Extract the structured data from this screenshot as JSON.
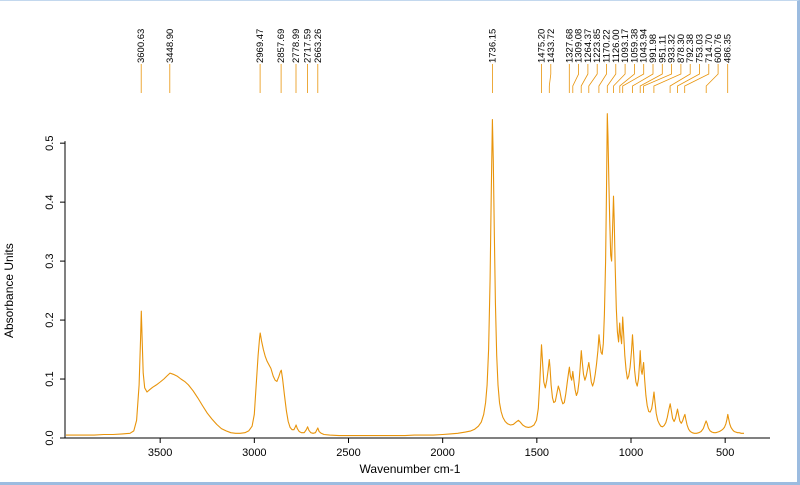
{
  "colors": {
    "line": "#E8940B",
    "leader_line": "#E8940B",
    "axis": "#000000",
    "window_border": "#9CBCE0",
    "background": "#FFFFFF"
  },
  "chart_data": {
    "type": "line",
    "title": "",
    "xlabel": "Wavenumber cm-1",
    "ylabel": "Absorbance Units",
    "legend": "none",
    "grid": false,
    "x_axis": {
      "min": 4000,
      "max": 400,
      "reversed": true,
      "ticks": [
        3500,
        3000,
        2500,
        2000,
        1500,
        1000,
        500
      ]
    },
    "y_axis": {
      "min": 0.0,
      "max": 0.58,
      "ticks": [
        0.0,
        0.1,
        0.2,
        0.3,
        0.4,
        0.5
      ]
    },
    "peak_labels": [
      "3600.63",
      "3448.90",
      "2969.47",
      "2857.69",
      "2778.99",
      "2717.59",
      "2663.26",
      "1736.15",
      "1475.20",
      "1433.72",
      "1327.68",
      "1309.08",
      "1264.37",
      "1223.85",
      "1170.22",
      "1126.00",
      "1093.17",
      "1059.38",
      "1043.94",
      "991.98",
      "951.11",
      "933.32",
      "878.30",
      "792.38",
      "753.03",
      "714.70",
      "600.76",
      "486.35"
    ],
    "points": [
      [
        4000,
        0.005
      ],
      [
        3950,
        0.005
      ],
      [
        3900,
        0.005
      ],
      [
        3850,
        0.005
      ],
      [
        3800,
        0.006
      ],
      [
        3750,
        0.006
      ],
      [
        3700,
        0.007
      ],
      [
        3660,
        0.008
      ],
      [
        3640,
        0.012
      ],
      [
        3625,
        0.03
      ],
      [
        3612,
        0.09
      ],
      [
        3604,
        0.17
      ],
      [
        3600,
        0.215
      ],
      [
        3596,
        0.17
      ],
      [
        3590,
        0.11
      ],
      [
        3582,
        0.085
      ],
      [
        3570,
        0.078
      ],
      [
        3555,
        0.082
      ],
      [
        3540,
        0.086
      ],
      [
        3520,
        0.09
      ],
      [
        3500,
        0.095
      ],
      [
        3480,
        0.1
      ],
      [
        3465,
        0.105
      ],
      [
        3448,
        0.11
      ],
      [
        3430,
        0.108
      ],
      [
        3410,
        0.105
      ],
      [
        3390,
        0.1
      ],
      [
        3370,
        0.096
      ],
      [
        3350,
        0.09
      ],
      [
        3325,
        0.08
      ],
      [
        3300,
        0.068
      ],
      [
        3275,
        0.055
      ],
      [
        3250,
        0.042
      ],
      [
        3225,
        0.032
      ],
      [
        3200,
        0.023
      ],
      [
        3175,
        0.016
      ],
      [
        3150,
        0.012
      ],
      [
        3125,
        0.009
      ],
      [
        3100,
        0.008
      ],
      [
        3075,
        0.008
      ],
      [
        3050,
        0.009
      ],
      [
        3030,
        0.012
      ],
      [
        3012,
        0.02
      ],
      [
        3000,
        0.04
      ],
      [
        2990,
        0.09
      ],
      [
        2980,
        0.14
      ],
      [
        2972,
        0.17
      ],
      [
        2969,
        0.178
      ],
      [
        2962,
        0.165
      ],
      [
        2952,
        0.15
      ],
      [
        2942,
        0.138
      ],
      [
        2932,
        0.13
      ],
      [
        2922,
        0.124
      ],
      [
        2912,
        0.118
      ],
      [
        2900,
        0.105
      ],
      [
        2890,
        0.098
      ],
      [
        2880,
        0.096
      ],
      [
        2870,
        0.104
      ],
      [
        2862,
        0.112
      ],
      [
        2857,
        0.115
      ],
      [
        2850,
        0.1
      ],
      [
        2840,
        0.072
      ],
      [
        2830,
        0.046
      ],
      [
        2820,
        0.028
      ],
      [
        2810,
        0.018
      ],
      [
        2800,
        0.014
      ],
      [
        2790,
        0.014
      ],
      [
        2782,
        0.019
      ],
      [
        2778,
        0.022
      ],
      [
        2772,
        0.016
      ],
      [
        2762,
        0.011
      ],
      [
        2750,
        0.009
      ],
      [
        2735,
        0.009
      ],
      [
        2724,
        0.014
      ],
      [
        2717,
        0.019
      ],
      [
        2710,
        0.013
      ],
      [
        2700,
        0.009
      ],
      [
        2688,
        0.008
      ],
      [
        2676,
        0.009
      ],
      [
        2668,
        0.014
      ],
      [
        2663,
        0.017
      ],
      [
        2656,
        0.011
      ],
      [
        2645,
        0.008
      ],
      [
        2630,
        0.006
      ],
      [
        2600,
        0.005
      ],
      [
        2550,
        0.004
      ],
      [
        2500,
        0.004
      ],
      [
        2450,
        0.004
      ],
      [
        2400,
        0.004
      ],
      [
        2350,
        0.004
      ],
      [
        2300,
        0.004
      ],
      [
        2250,
        0.004
      ],
      [
        2200,
        0.004
      ],
      [
        2150,
        0.005
      ],
      [
        2100,
        0.005
      ],
      [
        2050,
        0.005
      ],
      [
        2000,
        0.006
      ],
      [
        1960,
        0.007
      ],
      [
        1920,
        0.008
      ],
      [
        1880,
        0.01
      ],
      [
        1850,
        0.012
      ],
      [
        1830,
        0.015
      ],
      [
        1810,
        0.02
      ],
      [
        1795,
        0.027
      ],
      [
        1782,
        0.04
      ],
      [
        1772,
        0.06
      ],
      [
        1764,
        0.09
      ],
      [
        1756,
        0.15
      ],
      [
        1748,
        0.27
      ],
      [
        1742,
        0.42
      ],
      [
        1736,
        0.54
      ],
      [
        1731,
        0.47
      ],
      [
        1726,
        0.35
      ],
      [
        1720,
        0.23
      ],
      [
        1713,
        0.14
      ],
      [
        1706,
        0.09
      ],
      [
        1698,
        0.06
      ],
      [
        1690,
        0.045
      ],
      [
        1680,
        0.035
      ],
      [
        1668,
        0.028
      ],
      [
        1655,
        0.024
      ],
      [
        1640,
        0.022
      ],
      [
        1625,
        0.023
      ],
      [
        1610,
        0.027
      ],
      [
        1598,
        0.03
      ],
      [
        1588,
        0.027
      ],
      [
        1575,
        0.022
      ],
      [
        1560,
        0.019
      ],
      [
        1545,
        0.018
      ],
      [
        1530,
        0.019
      ],
      [
        1515,
        0.022
      ],
      [
        1502,
        0.03
      ],
      [
        1492,
        0.05
      ],
      [
        1484,
        0.095
      ],
      [
        1478,
        0.14
      ],
      [
        1475,
        0.158
      ],
      [
        1470,
        0.13
      ],
      [
        1463,
        0.095
      ],
      [
        1455,
        0.085
      ],
      [
        1447,
        0.098
      ],
      [
        1440,
        0.115
      ],
      [
        1434,
        0.133
      ],
      [
        1430,
        0.12
      ],
      [
        1424,
        0.09
      ],
      [
        1417,
        0.068
      ],
      [
        1410,
        0.06
      ],
      [
        1402,
        0.062
      ],
      [
        1394,
        0.075
      ],
      [
        1386,
        0.088
      ],
      [
        1378,
        0.08
      ],
      [
        1370,
        0.066
      ],
      [
        1362,
        0.058
      ],
      [
        1354,
        0.06
      ],
      [
        1346,
        0.075
      ],
      [
        1338,
        0.095
      ],
      [
        1330,
        0.115
      ],
      [
        1327,
        0.12
      ],
      [
        1322,
        0.105
      ],
      [
        1315,
        0.098
      ],
      [
        1309,
        0.113
      ],
      [
        1304,
        0.1
      ],
      [
        1297,
        0.082
      ],
      [
        1290,
        0.072
      ],
      [
        1283,
        0.078
      ],
      [
        1276,
        0.095
      ],
      [
        1270,
        0.118
      ],
      [
        1264,
        0.148
      ],
      [
        1259,
        0.13
      ],
      [
        1252,
        0.108
      ],
      [
        1245,
        0.098
      ],
      [
        1238,
        0.105
      ],
      [
        1230,
        0.118
      ],
      [
        1224,
        0.128
      ],
      [
        1218,
        0.115
      ],
      [
        1211,
        0.095
      ],
      [
        1204,
        0.088
      ],
      [
        1197,
        0.095
      ],
      [
        1190,
        0.108
      ],
      [
        1183,
        0.125
      ],
      [
        1176,
        0.148
      ],
      [
        1170,
        0.175
      ],
      [
        1165,
        0.16
      ],
      [
        1159,
        0.145
      ],
      [
        1153,
        0.142
      ],
      [
        1147,
        0.16
      ],
      [
        1141,
        0.21
      ],
      [
        1135,
        0.3
      ],
      [
        1130,
        0.42
      ],
      [
        1126,
        0.55
      ],
      [
        1122,
        0.51
      ],
      [
        1118,
        0.44
      ],
      [
        1113,
        0.37
      ],
      [
        1108,
        0.31
      ],
      [
        1103,
        0.3
      ],
      [
        1098,
        0.35
      ],
      [
        1093,
        0.41
      ],
      [
        1089,
        0.37
      ],
      [
        1084,
        0.29
      ],
      [
        1078,
        0.22
      ],
      [
        1072,
        0.18
      ],
      [
        1066,
        0.163
      ],
      [
        1060,
        0.195
      ],
      [
        1056,
        0.175
      ],
      [
        1050,
        0.16
      ],
      [
        1044,
        0.205
      ],
      [
        1039,
        0.175
      ],
      [
        1033,
        0.14
      ],
      [
        1026,
        0.115
      ],
      [
        1019,
        0.1
      ],
      [
        1012,
        0.105
      ],
      [
        1005,
        0.12
      ],
      [
        998,
        0.145
      ],
      [
        992,
        0.175
      ],
      [
        987,
        0.15
      ],
      [
        981,
        0.115
      ],
      [
        974,
        0.095
      ],
      [
        967,
        0.088
      ],
      [
        960,
        0.1
      ],
      [
        954,
        0.13
      ],
      [
        951,
        0.148
      ],
      [
        946,
        0.115
      ],
      [
        941,
        0.108
      ],
      [
        936,
        0.122
      ],
      [
        933,
        0.128
      ],
      [
        928,
        0.1
      ],
      [
        921,
        0.072
      ],
      [
        914,
        0.055
      ],
      [
        906,
        0.045
      ],
      [
        898,
        0.044
      ],
      [
        890,
        0.05
      ],
      [
        884,
        0.062
      ],
      [
        878,
        0.078
      ],
      [
        873,
        0.062
      ],
      [
        866,
        0.042
      ],
      [
        858,
        0.03
      ],
      [
        850,
        0.024
      ],
      [
        842,
        0.02
      ],
      [
        833,
        0.019
      ],
      [
        824,
        0.021
      ],
      [
        815,
        0.026
      ],
      [
        807,
        0.035
      ],
      [
        800,
        0.047
      ],
      [
        792,
        0.058
      ],
      [
        786,
        0.047
      ],
      [
        779,
        0.033
      ],
      [
        771,
        0.028
      ],
      [
        764,
        0.033
      ],
      [
        758,
        0.042
      ],
      [
        753,
        0.049
      ],
      [
        748,
        0.04
      ],
      [
        741,
        0.029
      ],
      [
        733,
        0.025
      ],
      [
        726,
        0.029
      ],
      [
        719,
        0.036
      ],
      [
        714,
        0.04
      ],
      [
        709,
        0.032
      ],
      [
        702,
        0.022
      ],
      [
        694,
        0.015
      ],
      [
        685,
        0.011
      ],
      [
        675,
        0.009
      ],
      [
        664,
        0.008
      ],
      [
        652,
        0.008
      ],
      [
        640,
        0.009
      ],
      [
        628,
        0.011
      ],
      [
        616,
        0.016
      ],
      [
        607,
        0.024
      ],
      [
        601,
        0.029
      ],
      [
        596,
        0.025
      ],
      [
        589,
        0.017
      ],
      [
        580,
        0.012
      ],
      [
        570,
        0.01
      ],
      [
        560,
        0.009
      ],
      [
        550,
        0.009
      ],
      [
        540,
        0.01
      ],
      [
        530,
        0.011
      ],
      [
        520,
        0.013
      ],
      [
        512,
        0.015
      ],
      [
        504,
        0.018
      ],
      [
        496,
        0.024
      ],
      [
        490,
        0.032
      ],
      [
        486,
        0.04
      ],
      [
        482,
        0.033
      ],
      [
        476,
        0.024
      ],
      [
        469,
        0.018
      ],
      [
        461,
        0.014
      ],
      [
        452,
        0.011
      ],
      [
        443,
        0.01
      ],
      [
        434,
        0.009
      ],
      [
        425,
        0.009
      ],
      [
        415,
        0.008
      ],
      [
        405,
        0.008
      ],
      [
        400,
        0.008
      ]
    ]
  }
}
